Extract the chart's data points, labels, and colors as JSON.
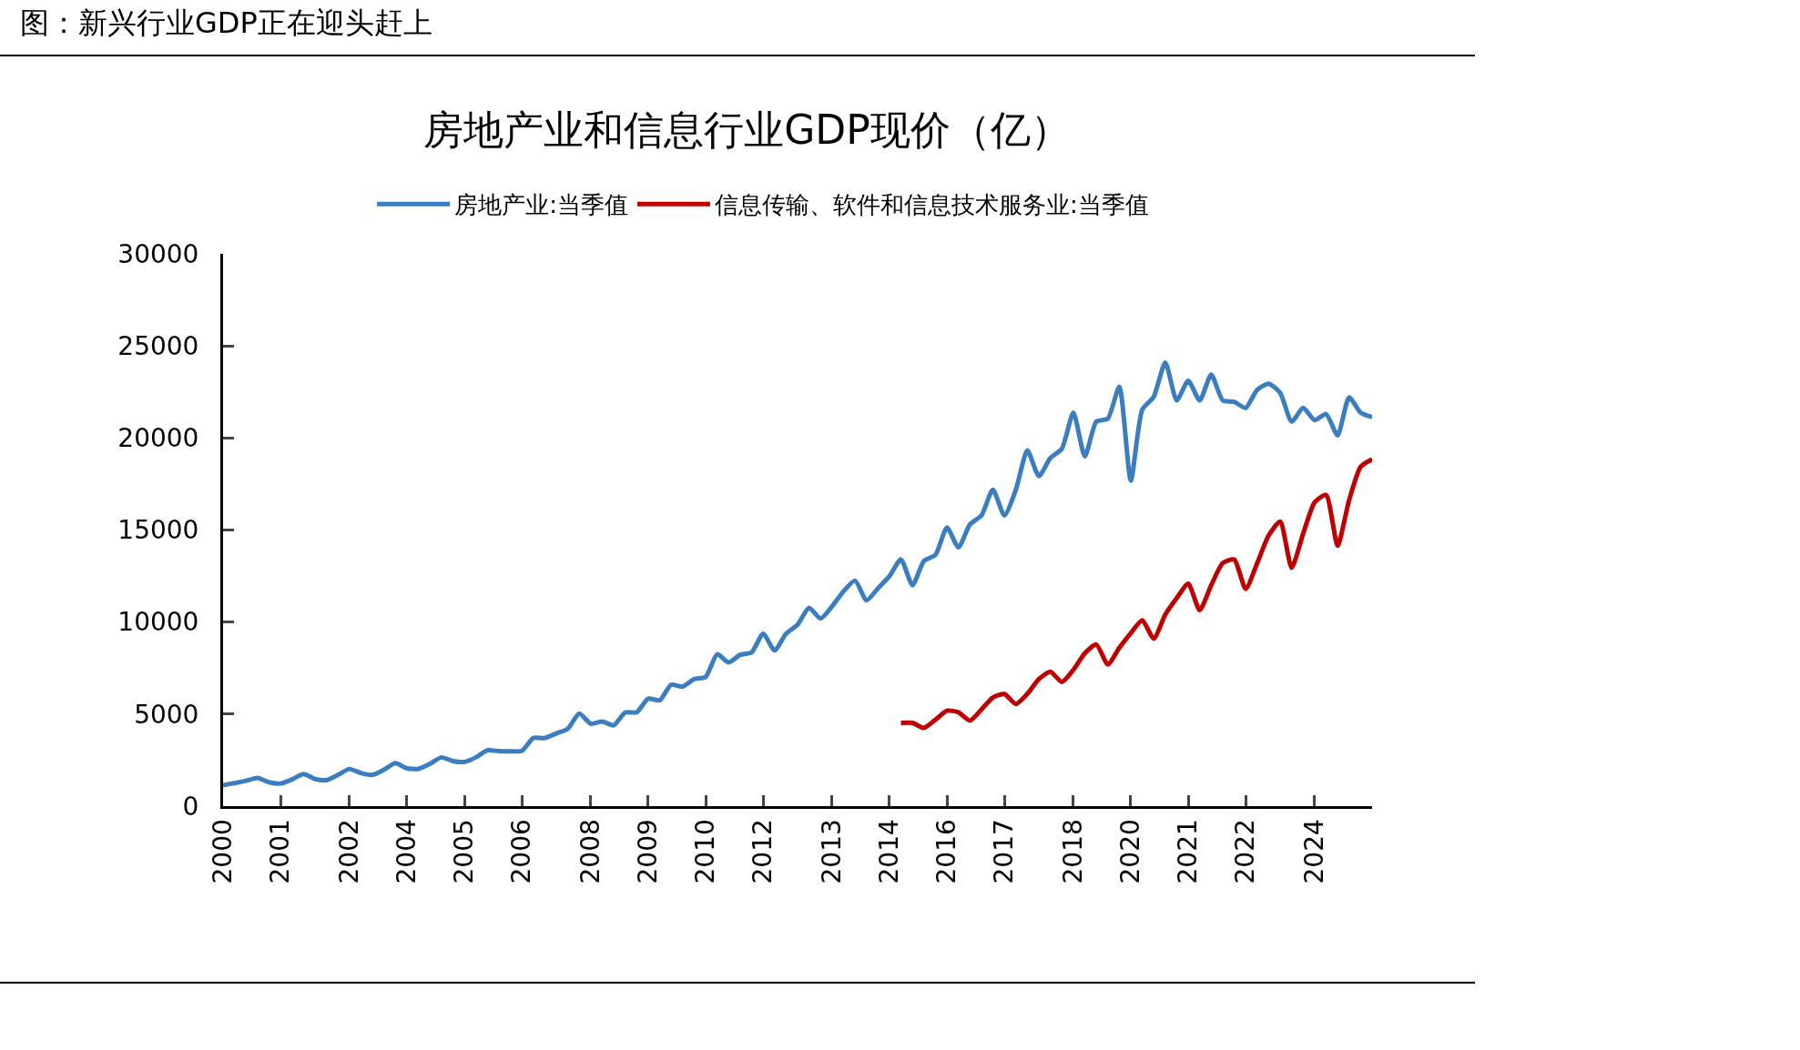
{
  "chart_data": {
    "type": "line",
    "title": "图：新兴行业GDP正在迎头赶上",
    "subtitle": "房地产业和信息行业GDP现价（亿）",
    "categories": [
      "2000",
      null,
      null,
      null,
      null,
      "2001",
      null,
      null,
      null,
      null,
      null,
      "2002",
      null,
      null,
      null,
      null,
      "2004",
      null,
      null,
      null,
      null,
      "2005",
      null,
      null,
      null,
      null,
      "2006",
      null,
      null,
      null,
      null,
      null,
      "2008",
      null,
      null,
      null,
      null,
      "2009",
      null,
      null,
      null,
      null,
      "2010",
      null,
      null,
      null,
      null,
      "2012",
      null,
      null,
      null,
      null,
      null,
      "2013",
      null,
      null,
      null,
      null,
      "2014",
      null,
      null,
      null,
      null,
      "2016",
      null,
      null,
      null,
      null,
      "2017",
      null,
      null,
      null,
      null,
      null,
      "2018",
      null,
      null,
      null,
      null,
      "2020",
      null,
      null,
      null,
      null,
      "2021",
      null,
      null,
      null,
      null,
      "2022",
      null,
      null,
      null,
      null,
      null,
      "2024",
      null,
      null,
      null,
      null,
      null
    ],
    "series": [
      {
        "name": "房地产业:当季值",
        "color": "#3a7dc1",
        "values": [
          1140,
          1250,
          1380,
          1530,
          1300,
          1230,
          1450,
          1740,
          1480,
          1420,
          1700,
          2020,
          1800,
          1700,
          1980,
          2330,
          2050,
          2030,
          2300,
          2650,
          2450,
          2400,
          2650,
          3030,
          2990,
          2980,
          3000,
          3700,
          3700,
          3950,
          4200,
          5030,
          4480,
          4600,
          4390,
          5090,
          5100,
          5840,
          5750,
          6600,
          6490,
          6900,
          7020,
          8250,
          7810,
          8220,
          8350,
          9370,
          8460,
          9370,
          9860,
          10770,
          10190,
          10850,
          11670,
          12250,
          11180,
          11840,
          12500,
          13400,
          12000,
          13320,
          13650,
          15130,
          14060,
          15300,
          15790,
          17190,
          15790,
          17190,
          19320,
          17930,
          18910,
          19410,
          21380,
          19000,
          20890,
          21050,
          22780,
          17680,
          21540,
          22240,
          24100,
          22040,
          23110,
          22040,
          23440,
          22040,
          21960,
          21630,
          22620,
          22950,
          22450,
          20890,
          21630,
          20970,
          21300,
          20140,
          22200,
          21380,
          21130
        ]
      },
      {
        "name": "信息传输、软件和信息技术服务业:当季值",
        "color": "#c00000",
        "values": [
          null,
          null,
          null,
          null,
          null,
          null,
          null,
          null,
          null,
          null,
          null,
          null,
          null,
          null,
          null,
          null,
          null,
          null,
          null,
          null,
          null,
          null,
          null,
          null,
          null,
          null,
          null,
          null,
          null,
          null,
          null,
          null,
          null,
          null,
          null,
          null,
          null,
          null,
          null,
          null,
          null,
          null,
          null,
          null,
          null,
          null,
          null,
          null,
          null,
          null,
          null,
          null,
          null,
          null,
          null,
          null,
          null,
          null,
          null,
          4520,
          4520,
          4250,
          4700,
          5180,
          5100,
          4650,
          5250,
          5900,
          6090,
          5550,
          6100,
          6900,
          7300,
          6750,
          7400,
          8300,
          8780,
          7700,
          8600,
          9400,
          10100,
          9100,
          10400,
          11300,
          12080,
          10650,
          12000,
          13200,
          13400,
          11800,
          13200,
          14700,
          15460,
          12950,
          14800,
          16500,
          16900,
          14150,
          16620,
          18430,
          18840
        ]
      }
    ],
    "ylim": [
      0,
      30000
    ],
    "yticks": [
      0,
      5000,
      10000,
      15000,
      20000,
      25000,
      30000
    ],
    "legend": "top"
  }
}
